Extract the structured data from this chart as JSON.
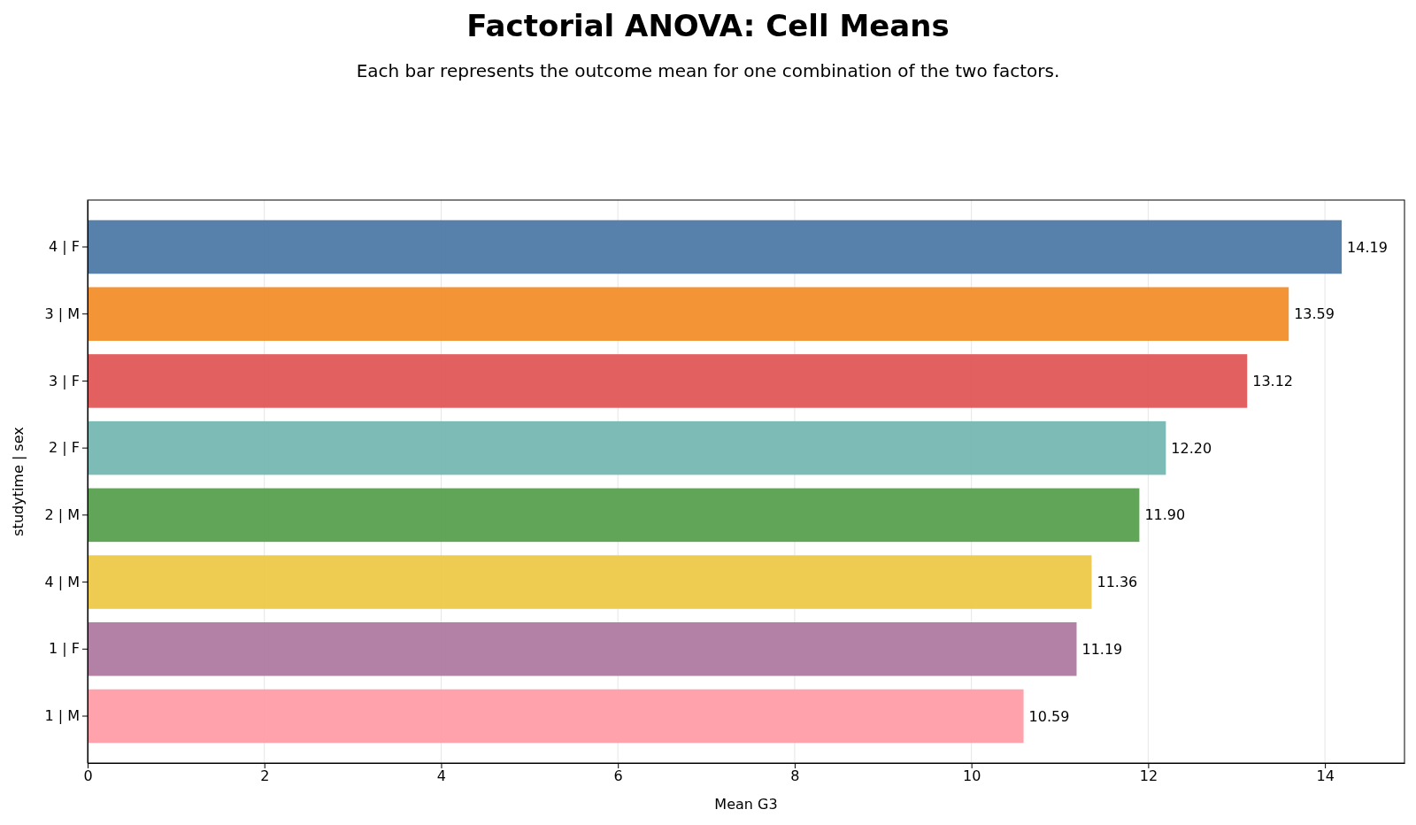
{
  "chart_data": {
    "type": "bar",
    "orientation": "horizontal",
    "title": "Factorial ANOVA: Cell Means",
    "subtitle": "Each bar represents the outcome mean for one combination of the two factors.",
    "xlabel": "Mean G3",
    "ylabel": "studytime | sex",
    "categories": [
      "4 | F",
      "3 | M",
      "3 | F",
      "2 | F",
      "2 | M",
      "4 | M",
      "1 | F",
      "1 | M"
    ],
    "values": [
      14.19,
      13.59,
      13.12,
      12.2,
      11.9,
      11.36,
      11.19,
      10.59
    ],
    "colors": [
      "#4e79a7",
      "#f28e2b",
      "#e15759",
      "#76b7b2",
      "#59a14f",
      "#edc948",
      "#b07aa1",
      "#ff9da7"
    ],
    "value_labels": [
      "14.19",
      "13.59",
      "13.12",
      "12.20",
      "11.90",
      "11.36",
      "11.19",
      "10.59"
    ],
    "xlim": [
      0,
      14.9
    ],
    "xticks": [
      0,
      2,
      4,
      6,
      8,
      10,
      12,
      14
    ],
    "grid": "x"
  }
}
